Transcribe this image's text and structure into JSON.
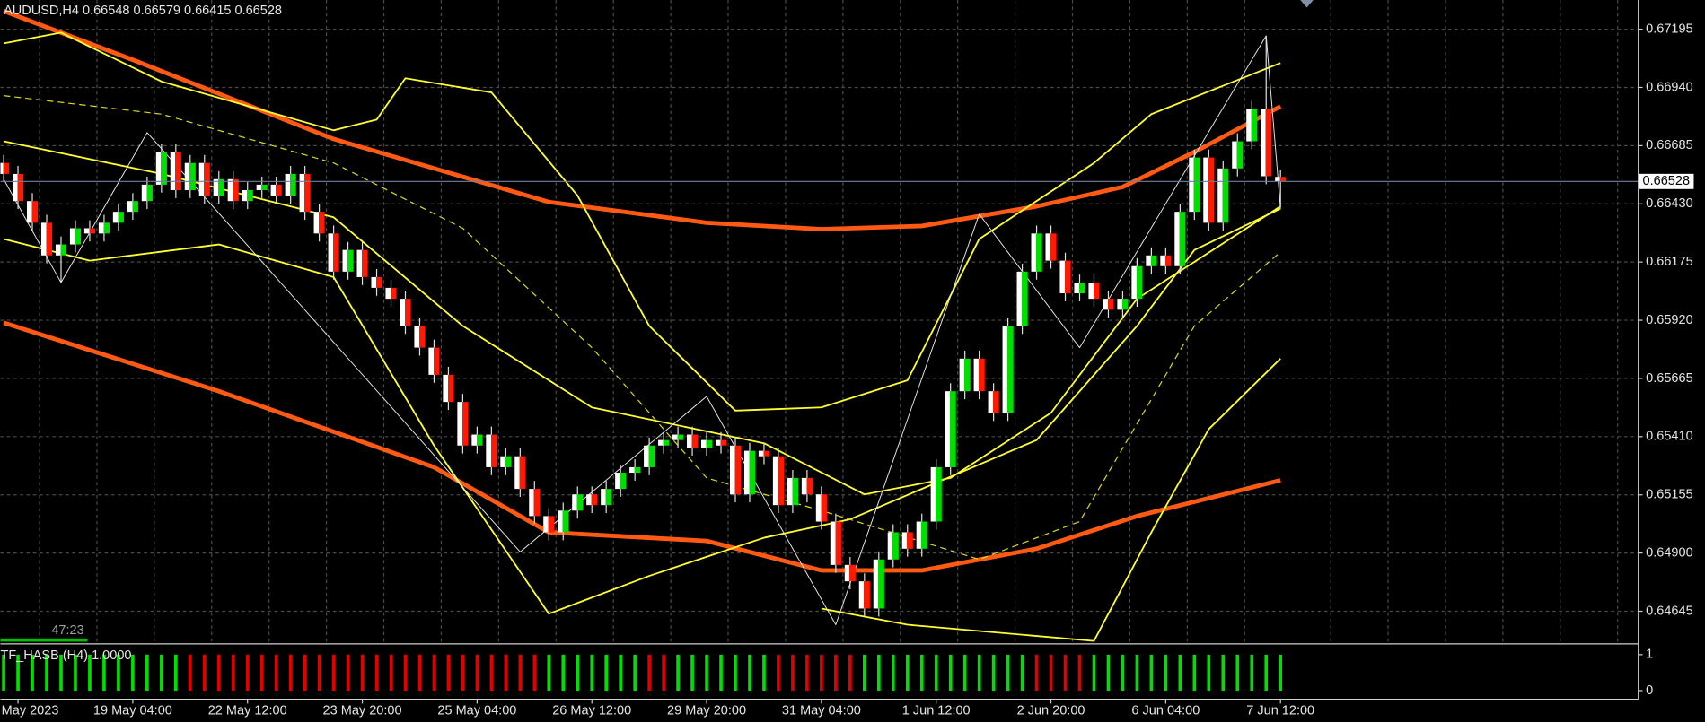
{
  "chart_data": {
    "type": "candlestick",
    "title": "AUDUSD,H4 0.66548 0.66579 0.66415 0.66528",
    "categories": [
      null,
      "May 2023",
      null,
      null,
      null,
      null,
      null,
      null,
      null,
      "19 May 04:00",
      null,
      null,
      null,
      null,
      null,
      null,
      null,
      "22 May 12:00",
      null,
      null,
      null,
      null,
      null,
      null,
      null,
      "23 May 20:00",
      null,
      null,
      null,
      null,
      null,
      null,
      null,
      "25 May 04:00",
      null,
      null,
      null,
      null,
      null,
      null,
      null,
      "26 May 12:00",
      null,
      null,
      null,
      null,
      null,
      null,
      null,
      "29 May 20:00",
      null,
      null,
      null,
      null,
      null,
      null,
      null,
      "31 May 04:00",
      null,
      null,
      null,
      null,
      null,
      null,
      null,
      "1 Jun 12:00",
      null,
      null,
      null,
      null,
      null,
      null,
      null,
      "2 Jun 20:00",
      null,
      null,
      null,
      null,
      null,
      null,
      null,
      "6 Jun 04:00",
      null,
      null,
      null,
      null,
      null,
      null,
      null,
      "7 Jun 12:00"
    ],
    "open": [
      0.66609,
      0.66561,
      0.66442,
      0.66347,
      0.66204,
      0.66252,
      0.66323,
      0.663,
      0.66347,
      0.66395,
      0.66442,
      0.66514,
      0.66657,
      0.6649,
      0.66609,
      0.66466,
      0.66538,
      0.66442,
      0.6649,
      0.66514,
      0.66466,
      0.66561,
      0.66395,
      0.663,
      0.66133,
      0.66228,
      0.66109,
      0.66062,
      0.66014,
      0.65895,
      0.658,
      0.65681,
      0.65562,
      0.65371,
      0.65419,
      0.65276,
      0.65324,
      0.65181,
      0.65062,
      0.64991,
      0.65086,
      0.65157,
      0.6511,
      0.65181,
      0.65252,
      0.65276,
      0.65371,
      0.65395,
      0.65419,
      0.65362,
      0.65395,
      0.65371,
      0.65157,
      0.65348,
      0.65324,
      0.6511,
      0.65229,
      0.65157,
      0.65038,
      0.64848,
      0.64776,
      0.64657,
      0.64872,
      0.64991,
      0.64919,
      0.65038,
      0.65276,
      0.65609,
      0.65752,
      0.65609,
      0.65514,
      0.65895,
      0.66133,
      0.663,
      0.66181,
      0.66038,
      0.66085,
      0.66014,
      0.65966,
      0.66014,
      0.66157,
      0.66204,
      0.66157,
      0.66395,
      0.66633,
      0.66347,
      0.66585,
      0.66704,
      0.66847,
      0.66548
    ],
    "high": [
      0.66644,
      0.66596,
      0.66477,
      0.66382,
      0.66287,
      0.66358,
      0.66358,
      0.66382,
      0.6643,
      0.66477,
      0.66549,
      0.66692,
      0.66692,
      0.66644,
      0.66644,
      0.66573,
      0.66573,
      0.66525,
      0.66549,
      0.66549,
      0.66596,
      0.66596,
      0.6643,
      0.66335,
      0.66263,
      0.66263,
      0.66144,
      0.66097,
      0.66049,
      0.6593,
      0.65835,
      0.65716,
      0.65597,
      0.65454,
      0.65454,
      0.65359,
      0.65359,
      0.65216,
      0.65097,
      0.65121,
      0.65192,
      0.65192,
      0.65216,
      0.65287,
      0.65311,
      0.65406,
      0.6543,
      0.65454,
      0.65454,
      0.6543,
      0.6543,
      0.65406,
      0.65383,
      0.65383,
      0.65359,
      0.65264,
      0.65264,
      0.65192,
      0.65073,
      0.64883,
      0.64811,
      0.64907,
      0.65026,
      0.65026,
      0.65073,
      0.65311,
      0.65644,
      0.65787,
      0.65787,
      0.65644,
      0.6593,
      0.66168,
      0.66335,
      0.66335,
      0.66216,
      0.6612,
      0.6612,
      0.66049,
      0.66049,
      0.66192,
      0.66239,
      0.66239,
      0.6643,
      0.66668,
      0.66668,
      0.6662,
      0.66739,
      0.66882,
      0.67166,
      0.66579
    ],
    "low": [
      0.66526,
      0.66407,
      0.66312,
      0.66169,
      0.66085,
      0.66217,
      0.66265,
      0.66265,
      0.66312,
      0.6636,
      0.66407,
      0.66479,
      0.66455,
      0.66455,
      0.66431,
      0.66431,
      0.66407,
      0.66407,
      0.66455,
      0.66431,
      0.66431,
      0.6636,
      0.66265,
      0.66098,
      0.66098,
      0.66074,
      0.66027,
      0.65979,
      0.6586,
      0.65765,
      0.65646,
      0.65527,
      0.65336,
      0.65336,
      0.65241,
      0.65241,
      0.65146,
      0.65027,
      0.64956,
      0.64956,
      0.65051,
      0.65075,
      0.65075,
      0.65146,
      0.65217,
      0.65241,
      0.65336,
      0.6536,
      0.65327,
      0.65327,
      0.65336,
      0.65122,
      0.65122,
      0.65289,
      0.65075,
      0.65075,
      0.65122,
      0.65003,
      0.64813,
      0.64741,
      0.64622,
      0.64622,
      0.64837,
      0.64884,
      0.64884,
      0.65003,
      0.65241,
      0.65574,
      0.65574,
      0.65479,
      0.65479,
      0.6586,
      0.66098,
      0.66146,
      0.66003,
      0.66003,
      0.65979,
      0.65931,
      0.65931,
      0.65979,
      0.66122,
      0.66122,
      0.66122,
      0.6636,
      0.66312,
      0.66312,
      0.6655,
      0.66669,
      0.66516,
      0.66415
    ],
    "close": [
      0.66561,
      0.66442,
      0.66347,
      0.66204,
      0.66252,
      0.66323,
      0.663,
      0.66347,
      0.66395,
      0.66442,
      0.66514,
      0.66657,
      0.6649,
      0.66609,
      0.66466,
      0.66538,
      0.66442,
      0.6649,
      0.66514,
      0.66466,
      0.66561,
      0.66395,
      0.663,
      0.66133,
      0.66228,
      0.66109,
      0.66062,
      0.66014,
      0.65895,
      0.658,
      0.65681,
      0.65562,
      0.65371,
      0.65419,
      0.65276,
      0.65324,
      0.65181,
      0.65062,
      0.64991,
      0.65086,
      0.65157,
      0.6511,
      0.65181,
      0.65252,
      0.65276,
      0.65371,
      0.65395,
      0.65419,
      0.65362,
      0.65395,
      0.65371,
      0.65157,
      0.65348,
      0.65324,
      0.6511,
      0.65229,
      0.65157,
      0.65038,
      0.64848,
      0.64776,
      0.64657,
      0.64872,
      0.64991,
      0.64919,
      0.65038,
      0.65276,
      0.65609,
      0.65752,
      0.65609,
      0.65514,
      0.65895,
      0.66133,
      0.663,
      0.66181,
      0.66038,
      0.66085,
      0.66014,
      0.65966,
      0.66014,
      0.66157,
      0.66204,
      0.66157,
      0.66395,
      0.66633,
      0.66347,
      0.66585,
      0.66704,
      0.66847,
      0.66551,
      0.66528
    ],
    "up_color": "#00e000",
    "down_color": "#ff1a00",
    "ylim": [
      0.64507,
      0.67323
    ],
    "yticks": [
      0.67195,
      {
        "value": 0.6694,
        "label": "0.66940"
      },
      0.66685,
      {
        "value": 0.6643,
        "label": "0.66430"
      },
      0.66175,
      {
        "value": 0.6592,
        "label": "0.65920"
      },
      0.65665,
      {
        "value": 0.6541,
        "label": "0.65410"
      },
      0.65155,
      {
        "value": 0.649,
        "label": "0.64900"
      },
      0.64645
    ],
    "grid": true,
    "current_price": 0.66528,
    "timer": "47:23",
    "lines": [
      {
        "color": "#ff5a14",
        "width": 4,
        "dash": false,
        "x": [
          0,
          9,
          23,
          38,
          49,
          57,
          64,
          72,
          78,
          83,
          89
        ],
        "values": [
          0.67275,
          0.67061,
          0.66714,
          0.66438,
          0.66347,
          0.66319,
          0.66333,
          0.66419,
          0.66504,
          0.66657,
          0.66857
        ]
      },
      {
        "color": "#ff5a14",
        "width": 4,
        "dash": false,
        "x": [
          0,
          15,
          30,
          38,
          49,
          57,
          64,
          72,
          79,
          89
        ],
        "values": [
          0.65909,
          0.65609,
          0.65276,
          0.64991,
          0.64953,
          0.64824,
          0.64824,
          0.64919,
          0.65062,
          0.65219
        ]
      },
      {
        "color": "#ffff30",
        "width": 1.5,
        "dash": false,
        "x": [
          0,
          4,
          11,
          23,
          26,
          28,
          34,
          40,
          45,
          51,
          57,
          63,
          68,
          76,
          80,
          89
        ],
        "values": [
          0.67133,
          0.6718,
          0.66966,
          0.66752,
          0.66799,
          0.6698,
          0.66918,
          0.66466,
          0.65895,
          0.65524,
          0.65538,
          0.65657,
          0.66276,
          0.66609,
          0.66823,
          0.67047
        ]
      },
      {
        "color": "#ffff30",
        "width": 1.5,
        "dash": false,
        "x": [
          0,
          6,
          15,
          23,
          30,
          38,
          45,
          53,
          59,
          64,
          72,
          79,
          83,
          89
        ],
        "values": [
          0.66276,
          0.66181,
          0.66252,
          0.66109,
          0.65371,
          0.64634,
          0.648,
          0.64967,
          0.65048,
          0.65181,
          0.65395,
          0.65895,
          0.66228,
          0.66409
        ]
      },
      {
        "color": "#ffff30",
        "width": 1.5,
        "dash": false,
        "x": [
          0,
          11,
          23,
          32,
          41,
          53,
          60,
          66,
          73,
          79,
          89
        ],
        "values": [
          0.66704,
          0.66561,
          0.66371,
          0.65895,
          0.65538,
          0.65381,
          0.65157,
          0.65229,
          0.65514,
          0.66014,
          0.66419
        ]
      },
      {
        "color": "#ffff30",
        "width": 1.5,
        "dash": false,
        "x": [
          57,
          63,
          76,
          80,
          84,
          89
        ],
        "values": [
          0.64657,
          0.64586,
          0.64515,
          0.64991,
          0.65443,
          0.65752
        ]
      },
      {
        "color": "#d8d820",
        "width": 1,
        "dash": true,
        "x": [
          0,
          11,
          23,
          32,
          41,
          49,
          57,
          68,
          75,
          83,
          89
        ],
        "values": [
          0.66904,
          0.66823,
          0.66609,
          0.66323,
          0.658,
          0.65229,
          0.65086,
          0.64872,
          0.65038,
          0.65895,
          0.66219
        ]
      },
      {
        "color": "#e8e8e8",
        "width": 0.8,
        "dash": false,
        "x": [
          0,
          4,
          10,
          36,
          49,
          58,
          68,
          75,
          88,
          89
        ],
        "values": [
          0.66538,
          0.66085,
          0.66742,
          0.64905,
          0.65586,
          0.64586,
          0.66385,
          0.658,
          0.67166,
          0.66409
        ]
      }
    ],
    "indicator": {
      "label": "TF_HASB (H4) 1.0000",
      "ylim": [
        -0.21,
        1.27
      ],
      "yticks": [
        1,
        0
      ],
      "values": [
        1,
        1,
        1,
        1,
        1,
        1,
        1,
        1,
        1,
        1,
        1,
        1,
        1,
        1,
        1,
        1,
        1,
        1,
        1,
        1,
        1,
        1,
        1,
        1,
        1,
        1,
        1,
        1,
        1,
        1,
        1,
        1,
        1,
        1,
        1,
        1,
        1,
        1,
        1,
        1,
        1,
        1,
        1,
        1,
        1,
        1,
        1,
        1,
        1,
        1,
        1,
        1,
        1,
        1,
        1,
        1,
        1,
        1,
        1,
        1,
        1,
        1,
        1,
        1,
        1,
        1,
        1,
        1,
        1,
        1,
        1,
        1,
        1,
        1,
        1,
        1,
        1,
        1,
        1,
        1,
        1,
        1,
        1,
        1,
        1,
        1,
        1,
        1,
        1,
        1
      ],
      "colors": [
        "#00e000",
        "#00e000",
        "#00e000",
        "#00e000",
        "#00e000",
        "#00e000",
        "#00e000",
        "#00e000",
        "#00e000",
        "#00e000",
        "#00e000",
        "#00e000",
        "#00e000",
        "#e00000",
        "#e00000",
        "#e00000",
        "#e00000",
        "#e00000",
        "#e00000",
        "#e00000",
        "#e00000",
        "#e00000",
        "#e00000",
        "#e00000",
        "#e00000",
        "#e00000",
        "#e00000",
        "#e00000",
        "#e00000",
        "#e00000",
        "#e00000",
        "#e00000",
        "#e00000",
        "#e00000",
        "#e00000",
        "#e00000",
        "#e00000",
        "#e00000",
        "#00e000",
        "#00e000",
        "#00e000",
        "#00e000",
        "#00e000",
        "#00e000",
        "#00e000",
        "#e00000",
        "#e00000",
        "#00e000",
        "#00e000",
        "#00e000",
        "#00e000",
        "#00e000",
        "#00e000",
        "#00e000",
        "#e00000",
        "#e00000",
        "#e00000",
        "#e00000",
        "#e00000",
        "#e00000",
        "#00e000",
        "#00e000",
        "#00e000",
        "#00e000",
        "#00e000",
        "#00e000",
        "#00e000",
        "#00e000",
        "#00e000",
        "#00e000",
        "#00e000",
        "#00e000",
        "#e00000",
        "#e00000",
        "#e00000",
        "#e00000",
        "#00e000",
        "#00e000",
        "#00e000",
        "#00e000",
        "#00e000",
        "#00e000",
        "#00e000",
        "#00e000",
        "#00e000",
        "#00e000",
        "#00e000",
        "#00e000",
        "#00e000",
        "#00e000"
      ]
    }
  }
}
